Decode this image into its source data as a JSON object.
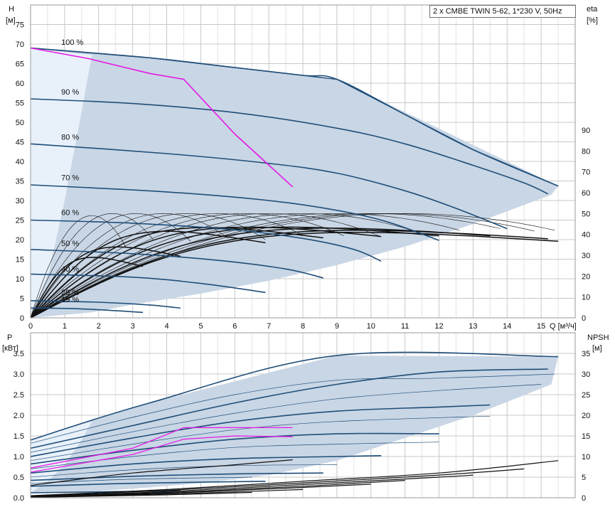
{
  "info_box": "2 x CMBE TWIN 5-62, 1*230 V, 50Hz",
  "colors": {
    "region_fill": "#c9d6e5",
    "region_light": "#e8f1fa",
    "curve": "#1f4e79",
    "duty": "#e619e6",
    "black": "#111111",
    "grid": "#c8c8c8"
  },
  "chart_data": [
    {
      "type": "line",
      "id": "head",
      "ylabel_top": "H",
      "yunit_top": "[м]",
      "ylabel_right": "eta",
      "yunit_right": "[%]",
      "xlabel": "Q [м³/ч]",
      "xlim": [
        0,
        16
      ],
      "ylim": [
        0,
        80
      ],
      "y2lim": [
        0,
        150
      ],
      "x_ticks": [
        0,
        1,
        2,
        3,
        4,
        5,
        6,
        7,
        8,
        9,
        10,
        11,
        12,
        13,
        14,
        15
      ],
      "y_ticks": [
        0,
        5,
        10,
        15,
        20,
        25,
        30,
        35,
        40,
        45,
        50,
        55,
        60,
        65,
        70,
        75
      ],
      "y2_ticks": [
        0,
        10,
        20,
        30,
        40,
        50,
        60,
        70,
        80,
        90
      ],
      "grid": true,
      "speed_labels": [
        {
          "text": "100 %",
          "x": 0.9,
          "y": 69.5
        },
        {
          "text": "90 %",
          "x": 0.9,
          "y": 56.7
        },
        {
          "text": "80 %",
          "x": 0.9,
          "y": 45.2
        },
        {
          "text": "70 %",
          "x": 0.9,
          "y": 34.8
        },
        {
          "text": "60 %",
          "x": 0.9,
          "y": 25.9
        },
        {
          "text": "50 %",
          "x": 0.9,
          "y": 18
        },
        {
          "text": "40 %",
          "x": 0.9,
          "y": 11.5
        },
        {
          "text": "25 %",
          "x": 0.9,
          "y": 5.5
        },
        {
          "text": "19 %",
          "x": 0.9,
          "y": 3.6
        }
      ],
      "operating_region": [
        [
          0,
          0
        ],
        [
          0,
          69
        ],
        [
          3.5,
          66.5
        ],
        [
          9,
          61
        ],
        [
          15.5,
          33.7
        ],
        [
          15.3,
          31.5
        ],
        [
          13,
          24
        ],
        [
          11,
          18.2
        ],
        [
          9,
          13.5
        ],
        [
          7,
          9.5
        ],
        [
          5,
          6.2
        ],
        [
          3,
          3.4
        ],
        [
          1.8,
          1.4
        ],
        [
          0,
          0
        ]
      ],
      "light_region": [
        [
          0,
          0
        ],
        [
          0,
          69
        ],
        [
          1.8,
          67.2
        ],
        [
          1.4,
          48
        ],
        [
          1,
          30
        ],
        [
          0.55,
          12
        ],
        [
          0,
          0
        ]
      ],
      "head_curves": [
        {
          "speed": "100 %",
          "points": [
            [
              0,
              69
            ],
            [
              3.5,
              66.5
            ],
            [
              6,
              64
            ],
            [
              8,
              62
            ],
            [
              9,
              61
            ],
            [
              11,
              52
            ],
            [
              13,
              43
            ],
            [
              15.5,
              33.7
            ]
          ]
        },
        {
          "speed": "90 %",
          "points": [
            [
              0,
              56
            ],
            [
              3,
              54.8
            ],
            [
              6,
              52.5
            ],
            [
              9,
              48.5
            ],
            [
              11,
              44.5
            ],
            [
              13,
              39
            ],
            [
              14.5,
              34.5
            ],
            [
              15.2,
              31.7
            ]
          ]
        },
        {
          "speed": "80 %",
          "points": [
            [
              0,
              44.5
            ],
            [
              4,
              42
            ],
            [
              7,
              39.5
            ],
            [
              9,
              37
            ],
            [
              11,
              32.5
            ],
            [
              12.5,
              28
            ],
            [
              14,
              22.8
            ]
          ]
        },
        {
          "speed": "70 %",
          "points": [
            [
              0,
              34
            ],
            [
              4,
              32.2
            ],
            [
              7,
              30
            ],
            [
              9,
              27.5
            ],
            [
              10.5,
              24.5
            ],
            [
              12,
              19.8
            ]
          ]
        },
        {
          "speed": "60 %",
          "points": [
            [
              0,
              25
            ],
            [
              3,
              24.2
            ],
            [
              6,
              22.5
            ],
            [
              8,
              20.3
            ],
            [
              9.5,
              17.5
            ],
            [
              10.3,
              14.5
            ]
          ]
        },
        {
          "speed": "50 %",
          "points": [
            [
              0,
              17.5
            ],
            [
              3,
              16.4
            ],
            [
              5.5,
              14.7
            ],
            [
              7.5,
              12.5
            ],
            [
              8.6,
              10.2
            ]
          ]
        },
        {
          "speed": "40 %",
          "points": [
            [
              0,
              11.2
            ],
            [
              3,
              10.4
            ],
            [
              5,
              8.8
            ],
            [
              6.9,
              6.5
            ]
          ]
        },
        {
          "speed": "25 %",
          "points": [
            [
              0,
              4.4
            ],
            [
              2,
              4
            ],
            [
              3.5,
              3.3
            ],
            [
              4.4,
              2.5
            ]
          ]
        },
        {
          "speed": "19 %",
          "points": [
            [
              0,
              2.5
            ],
            [
              1.5,
              2.3
            ],
            [
              3.3,
              1.4
            ]
          ]
        }
      ],
      "duty_curve": [
        [
          0,
          69
        ],
        [
          1.7,
          66.3
        ],
        [
          3.5,
          62.5
        ],
        [
          4.5,
          61
        ],
        [
          6,
          47
        ],
        [
          7.7,
          33.5
        ]
      ],
      "eta_curves": [
        {
          "qmax": 15.5,
          "etamax": 41,
          "qpeak": 12
        },
        {
          "qmax": 15.2,
          "etamax": 42,
          "qpeak": 12
        },
        {
          "qmax": 13.5,
          "etamax": 43,
          "qpeak": 11
        },
        {
          "qmax": 12,
          "etamax": 43.5,
          "qpeak": 9.5
        },
        {
          "qmax": 10.3,
          "etamax": 43.5,
          "qpeak": 8
        },
        {
          "qmax": 8.6,
          "etamax": 43.3,
          "qpeak": 6.5
        },
        {
          "qmax": 6.9,
          "etamax": 41.5,
          "qpeak": 5
        },
        {
          "qmax": 4.4,
          "etamax": 34,
          "qpeak": 3.2
        },
        {
          "qmax": 3.3,
          "etamax": 29,
          "qpeak": 2.3
        }
      ],
      "thin_eta": [
        {
          "qmax": 15.4,
          "etamax": 50,
          "qpeak": 11
        },
        {
          "qmax": 14.8,
          "etamax": 50,
          "qpeak": 10.5
        },
        {
          "qmax": 13.8,
          "etamax": 50,
          "qpeak": 10
        },
        {
          "qmax": 12.6,
          "etamax": 50,
          "qpeak": 9
        },
        {
          "qmax": 11.5,
          "etamax": 50,
          "qpeak": 8
        },
        {
          "qmax": 10.3,
          "etamax": 50,
          "qpeak": 7
        },
        {
          "qmax": 9.2,
          "etamax": 50,
          "qpeak": 6.3
        },
        {
          "qmax": 8.0,
          "etamax": 50,
          "qpeak": 5.5
        },
        {
          "qmax": 6.9,
          "etamax": 50,
          "qpeak": 4.6
        },
        {
          "qmax": 5.8,
          "etamax": 50,
          "qpeak": 3.9
        },
        {
          "qmax": 4.7,
          "etamax": 50,
          "qpeak": 3.1
        },
        {
          "qmax": 3.6,
          "etamax": 50,
          "qpeak": 2.4
        },
        {
          "qmax": 2.8,
          "etamax": 49,
          "qpeak": 1.8
        }
      ]
    },
    {
      "type": "line",
      "id": "power",
      "ylabel_top": "P",
      "yunit_top": "[кВт]",
      "ylabel_right": "NPSH",
      "yunit_right": "[м]",
      "xlim": [
        0,
        16
      ],
      "ylim": [
        0,
        4
      ],
      "y2lim": [
        0,
        40
      ],
      "y_ticks": [
        0,
        0.5,
        1.0,
        1.5,
        2.0,
        2.5,
        3.0,
        3.5
      ],
      "y_tick_labels": [
        "0.0",
        "0.5",
        "1.0",
        "1.5",
        "2.0",
        "2.5",
        "3.0",
        "3.5"
      ],
      "y2_ticks": [
        0,
        5,
        10,
        15,
        20,
        25,
        30,
        35
      ],
      "grid": true,
      "operating_region": [
        [
          0,
          0.12
        ],
        [
          0,
          1.4
        ],
        [
          3.5,
          2.3
        ],
        [
          9,
          3.45
        ],
        [
          15.5,
          3.42
        ],
        [
          15.3,
          2.75
        ],
        [
          13,
          2.0
        ],
        [
          11,
          1.45
        ],
        [
          9,
          0.9
        ],
        [
          7,
          0.55
        ],
        [
          5,
          0.35
        ],
        [
          3,
          0.22
        ],
        [
          1.8,
          0.16
        ],
        [
          0,
          0.12
        ]
      ],
      "light_region": [
        [
          0,
          0.12
        ],
        [
          0,
          1.4
        ],
        [
          1.8,
          1.85
        ],
        [
          1.5,
          1.4
        ],
        [
          1,
          0.8
        ],
        [
          0.5,
          0.4
        ],
        [
          0,
          0.12
        ]
      ],
      "power_curves": [
        {
          "points": [
            [
              0,
              1.4
            ],
            [
              3.5,
              2.3
            ],
            [
              9,
              3.45
            ],
            [
              15.5,
              3.42
            ]
          ]
        },
        {
          "points": [
            [
              0,
              1.2
            ],
            [
              3,
              1.75
            ],
            [
              6,
              2.3
            ],
            [
              9,
              2.75
            ],
            [
              12,
              3.05
            ],
            [
              15.2,
              3.12
            ]
          ]
        },
        {
          "points": [
            [
              0,
              1.0
            ],
            [
              3,
              1.45
            ],
            [
              6,
              1.85
            ],
            [
              9,
              2.1
            ],
            [
              12,
              2.2
            ],
            [
              13.5,
              2.25
            ]
          ]
        },
        {
          "points": [
            [
              0,
              0.82
            ],
            [
              3,
              1.15
            ],
            [
              6,
              1.42
            ],
            [
              9,
              1.55
            ],
            [
              12,
              1.55
            ]
          ]
        },
        {
          "points": [
            [
              0,
              0.6
            ],
            [
              3,
              0.82
            ],
            [
              6,
              0.95
            ],
            [
              9,
              1.0
            ],
            [
              10.3,
              1.02
            ]
          ]
        },
        {
          "points": [
            [
              0,
              0.42
            ],
            [
              3,
              0.52
            ],
            [
              6,
              0.58
            ],
            [
              8.6,
              0.6
            ]
          ]
        },
        {
          "points": [
            [
              0,
              0.28
            ],
            [
              3,
              0.35
            ],
            [
              6.9,
              0.4
            ]
          ]
        },
        {
          "points": [
            [
              0,
              0.12
            ],
            [
              2.5,
              0.15
            ],
            [
              4.4,
              0.17
            ]
          ]
        }
      ],
      "thin_power": [
        {
          "points": [
            [
              0,
              1.32
            ],
            [
              3,
              1.95
            ],
            [
              6,
              2.5
            ],
            [
              9,
              2.85
            ],
            [
              12,
              2.9
            ],
            [
              15.4,
              3.0
            ]
          ]
        },
        {
          "points": [
            [
              0,
              1.1
            ],
            [
              3,
              1.6
            ],
            [
              6,
              2.05
            ],
            [
              9,
              2.4
            ],
            [
              12,
              2.6
            ],
            [
              15,
              2.75
            ]
          ]
        },
        {
          "points": [
            [
              0,
              0.9
            ],
            [
              3,
              1.3
            ],
            [
              6,
              1.65
            ],
            [
              9,
              1.85
            ],
            [
              13.5,
              1.98
            ]
          ]
        },
        {
          "points": [
            [
              0,
              0.7
            ],
            [
              3,
              1.0
            ],
            [
              6,
              1.22
            ],
            [
              9,
              1.3
            ],
            [
              12,
              1.35
            ]
          ]
        },
        {
          "points": [
            [
              0,
              0.5
            ],
            [
              3,
              0.68
            ],
            [
              6,
              0.78
            ],
            [
              9,
              0.8
            ]
          ]
        },
        {
          "points": [
            [
              0,
              0.35
            ],
            [
              3,
              0.45
            ],
            [
              6.5,
              0.5
            ]
          ]
        }
      ],
      "duty_power": [
        {
          "points": [
            [
              0,
              0.72
            ],
            [
              3,
              1.2
            ],
            [
              4.5,
              1.7
            ],
            [
              6,
              1.7
            ],
            [
              7.7,
              1.7
            ]
          ]
        },
        {
          "points": [
            [
              0,
              0.62
            ],
            [
              3,
              1.05
            ],
            [
              4.5,
              1.42
            ],
            [
              6,
              1.5
            ],
            [
              7.7,
              1.48
            ]
          ]
        }
      ],
      "npsh_curves": [
        {
          "points": [
            [
              0,
              0.05
            ],
            [
              4,
              0.2
            ],
            [
              8,
              0.4
            ],
            [
              12,
              0.6
            ],
            [
              15.5,
              0.9
            ]
          ]
        },
        {
          "points": [
            [
              0,
              0.04
            ],
            [
              4,
              0.18
            ],
            [
              8,
              0.36
            ],
            [
              12,
              0.55
            ],
            [
              14.5,
              0.7
            ]
          ]
        },
        {
          "points": [
            [
              0,
              0.03
            ],
            [
              4,
              0.15
            ],
            [
              8,
              0.32
            ],
            [
              12,
              0.5
            ],
            [
              13,
              0.55
            ]
          ]
        },
        {
          "points": [
            [
              0,
              0.03
            ],
            [
              4,
              0.13
            ],
            [
              8,
              0.28
            ],
            [
              11,
              0.42
            ]
          ]
        },
        {
          "points": [
            [
              0,
              0.02
            ],
            [
              4,
              0.11
            ],
            [
              8,
              0.25
            ],
            [
              10,
              0.33
            ]
          ]
        },
        {
          "points": [
            [
              0,
              0.02
            ],
            [
              4,
              0.09
            ],
            [
              8,
              0.2
            ]
          ]
        },
        {
          "points": [
            [
              0,
              0.01
            ],
            [
              4,
              0.07
            ],
            [
              6.5,
              0.13
            ]
          ]
        },
        {
          "points": [
            [
              0,
              0.3
            ],
            [
              3,
              0.6
            ],
            [
              6,
              0.8
            ],
            [
              7.7,
              0.92
            ]
          ]
        }
      ]
    }
  ]
}
